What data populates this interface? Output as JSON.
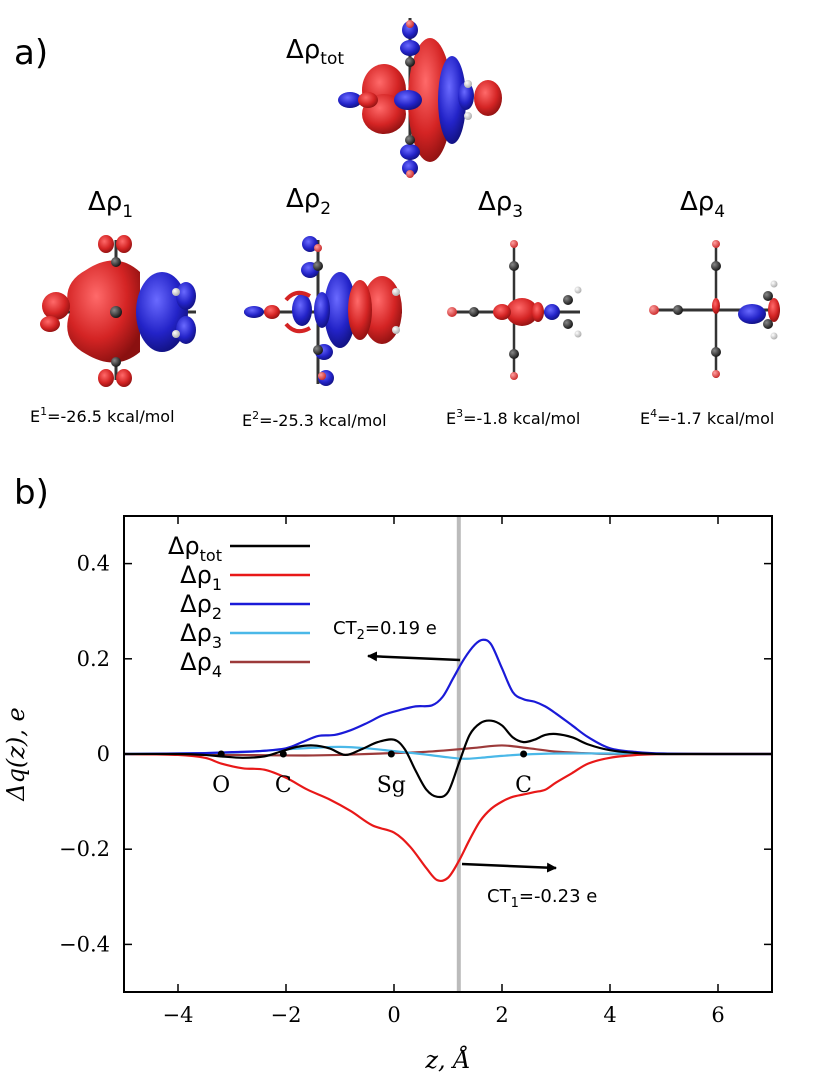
{
  "panel_a": {
    "label": "a)",
    "total_title": "Δρ_tot",
    "components": [
      {
        "title": "Δρ",
        "sub": "1",
        "energy_pre": "E",
        "energy_sup": "1",
        "energy_post": "=-26.5 kcal/mol"
      },
      {
        "title": "Δρ",
        "sub": "2",
        "energy_pre": "E",
        "energy_sup": "2",
        "energy_post": "=-25.3 kcal/mol"
      },
      {
        "title": "Δρ",
        "sub": "3",
        "energy_pre": "E",
        "energy_sup": "3",
        "energy_post": "=-1.8 kcal/mol"
      },
      {
        "title": "Δρ",
        "sub": "4",
        "energy_pre": "E",
        "energy_sup": "4",
        "energy_post": "=-1.7 kcal/mol"
      }
    ],
    "colors": {
      "depletion": "#d42424",
      "accumulation": "#2323c8",
      "atom_c": "#333333",
      "atom_o": "#e05050",
      "atom_h": "#dddddd"
    }
  },
  "panel_b": {
    "label": "b)",
    "title_main": "Δρ",
    "title_sub": "tot"
  },
  "chart_data": {
    "type": "line",
    "xlabel": "z, Å",
    "ylabel": "Δq(z), e",
    "xlim": [
      -5,
      7
    ],
    "ylim": [
      -0.5,
      0.5
    ],
    "xticks": [
      -4,
      -2,
      0,
      2,
      4,
      6
    ],
    "yticks": [
      -0.4,
      -0.2,
      0,
      0.2,
      0.4
    ],
    "xtick_labels": [
      "−4",
      "−2",
      "0",
      "2",
      "4",
      "6"
    ],
    "ytick_labels": [
      "−0.4",
      "−0.2",
      "0",
      "0.2",
      "0.4"
    ],
    "grid": false,
    "legend_position": "top-left",
    "vertical_line": {
      "x": 1.2,
      "color": "#bbbbbb"
    },
    "series": [
      {
        "name": "Δρ",
        "sub": "tot",
        "color": "#000000",
        "x": [
          -5,
          -4,
          -3.5,
          -3.2,
          -2.8,
          -2.4,
          -2.1,
          -1.8,
          -1.5,
          -1.2,
          -0.9,
          -0.6,
          -0.3,
          0,
          0.2,
          0.4,
          0.6,
          0.8,
          1.0,
          1.2,
          1.4,
          1.6,
          1.8,
          2.0,
          2.2,
          2.4,
          2.6,
          2.8,
          3.0,
          3.3,
          3.6,
          4.0,
          4.5,
          5,
          6,
          7
        ],
        "y": [
          0,
          0,
          -0.002,
          -0.005,
          -0.008,
          -0.005,
          0.005,
          0.015,
          0.018,
          0.012,
          -0.002,
          0.01,
          0.025,
          0.03,
          0.01,
          -0.035,
          -0.075,
          -0.09,
          -0.08,
          -0.02,
          0.04,
          0.065,
          0.07,
          0.06,
          0.035,
          0.025,
          0.03,
          0.04,
          0.042,
          0.035,
          0.02,
          0.008,
          0.002,
          0,
          0,
          0
        ]
      },
      {
        "name": "Δρ",
        "sub": "1",
        "color": "#e81818",
        "x": [
          -5,
          -4,
          -3.5,
          -3.2,
          -2.8,
          -2.4,
          -2.0,
          -1.6,
          -1.2,
          -0.8,
          -0.4,
          0,
          0.3,
          0.6,
          0.8,
          1.0,
          1.2,
          1.4,
          1.6,
          1.8,
          2.0,
          2.2,
          2.4,
          2.6,
          2.8,
          3.0,
          3.3,
          3.6,
          4.0,
          4.5,
          5,
          6,
          7
        ],
        "y": [
          0,
          -0.002,
          -0.008,
          -0.02,
          -0.03,
          -0.033,
          -0.05,
          -0.075,
          -0.095,
          -0.12,
          -0.15,
          -0.165,
          -0.195,
          -0.24,
          -0.265,
          -0.26,
          -0.225,
          -0.18,
          -0.14,
          -0.115,
          -0.1,
          -0.09,
          -0.085,
          -0.08,
          -0.075,
          -0.06,
          -0.04,
          -0.02,
          -0.008,
          -0.002,
          0,
          0,
          0
        ]
      },
      {
        "name": "Δρ",
        "sub": "2",
        "color": "#1a1ad8",
        "x": [
          -5,
          -4,
          -3.5,
          -3.0,
          -2.5,
          -2.0,
          -1.7,
          -1.4,
          -1.1,
          -0.8,
          -0.5,
          -0.2,
          0.1,
          0.4,
          0.7,
          0.9,
          1.1,
          1.3,
          1.5,
          1.65,
          1.8,
          2.0,
          2.2,
          2.4,
          2.6,
          2.8,
          3.0,
          3.3,
          3.6,
          4.0,
          4.5,
          5,
          6,
          7
        ],
        "y": [
          0,
          0.001,
          0.002,
          0.004,
          0.006,
          0.012,
          0.025,
          0.038,
          0.04,
          0.05,
          0.065,
          0.082,
          0.092,
          0.1,
          0.102,
          0.12,
          0.16,
          0.2,
          0.23,
          0.24,
          0.23,
          0.18,
          0.13,
          0.115,
          0.11,
          0.1,
          0.085,
          0.06,
          0.035,
          0.012,
          0.004,
          0.001,
          0,
          0
        ]
      },
      {
        "name": "Δρ",
        "sub": "3",
        "color": "#4ab8e8",
        "x": [
          -5,
          -4,
          -3,
          -2.5,
          -2,
          -1.5,
          -1.0,
          -0.5,
          0,
          0.5,
          1.0,
          1.3,
          1.6,
          2.0,
          2.4,
          3.0,
          4,
          5,
          6,
          7
        ],
        "y": [
          0,
          0.001,
          0.003,
          0.006,
          0.01,
          0.013,
          0.015,
          0.012,
          0.006,
          0.0,
          -0.007,
          -0.01,
          -0.008,
          -0.004,
          -0.001,
          0.001,
          0.001,
          0,
          0,
          0
        ]
      },
      {
        "name": "Δρ",
        "sub": "4",
        "color": "#9c3a3a",
        "x": [
          -5,
          -4,
          -3,
          -2,
          -1.5,
          -1,
          -0.5,
          0,
          0.5,
          1.0,
          1.5,
          2.0,
          2.5,
          3.0,
          3.5,
          4,
          5,
          6,
          7
        ],
        "y": [
          0,
          -0.001,
          -0.002,
          -0.003,
          -0.003,
          -0.002,
          0.0,
          0.002,
          0.004,
          0.008,
          0.013,
          0.018,
          0.012,
          0.005,
          0.002,
          0.0,
          0,
          0,
          0
        ]
      }
    ],
    "atom_markers": [
      {
        "label": "O",
        "x": -3.2
      },
      {
        "label": "C",
        "x": -2.05
      },
      {
        "label": "Sg",
        "x": -0.05
      },
      {
        "label": "C",
        "x": 2.4
      }
    ],
    "annotations": [
      {
        "pre": "CT",
        "sub": "2",
        "post": "=0.19 e",
        "arrow": "left"
      },
      {
        "pre": "CT",
        "sub": "1",
        "post": "=-0.23 e",
        "arrow": "right"
      }
    ]
  }
}
